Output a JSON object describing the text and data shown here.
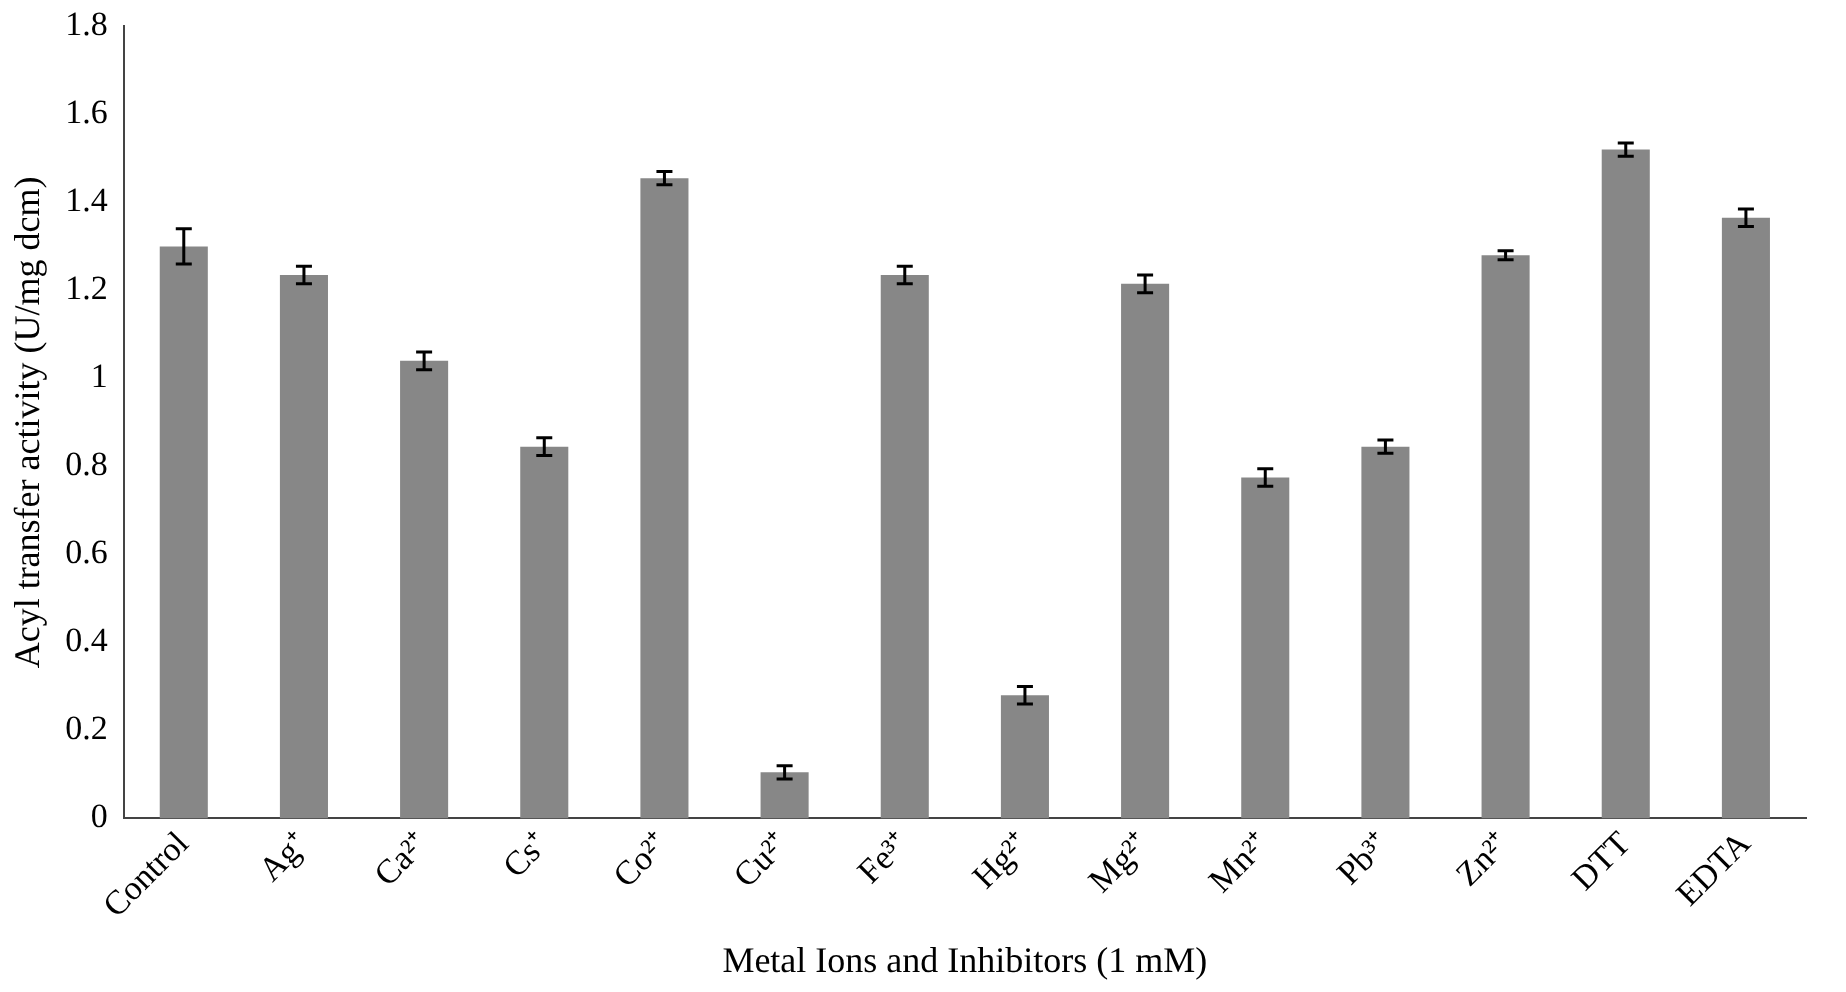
{
  "chart_data": {
    "type": "bar",
    "xlabel": "Metal Ions and Inhibitors (1 mM)",
    "ylabel": "Acyl transfer activity (U/mg dcm)",
    "categories": [
      "Control",
      "Ag⁺",
      "Ca²⁺",
      "Cs⁺",
      "Co²⁺",
      "Cu²⁺",
      "Fe³⁺",
      "Hg²⁺",
      "Mg²⁺",
      "Mn²⁺",
      "Pb³⁺",
      "Zn²⁺",
      "DTT",
      "EDTA"
    ],
    "values": [
      1.3,
      1.235,
      1.04,
      0.845,
      1.455,
      0.105,
      1.235,
      0.28,
      1.215,
      0.775,
      0.845,
      1.28,
      1.52,
      1.365
    ],
    "errors": [
      0.04,
      0.02,
      0.02,
      0.02,
      0.015,
      0.015,
      0.02,
      0.02,
      0.02,
      0.02,
      0.015,
      0.01,
      0.015,
      0.02
    ],
    "color": "#878787",
    "ylim": [
      0,
      1.8
    ],
    "yticks": [
      0,
      0.2,
      0.4,
      0.6,
      0.8,
      1,
      1.2,
      1.4,
      1.6,
      1.8
    ],
    "grid": false,
    "legend": false
  }
}
